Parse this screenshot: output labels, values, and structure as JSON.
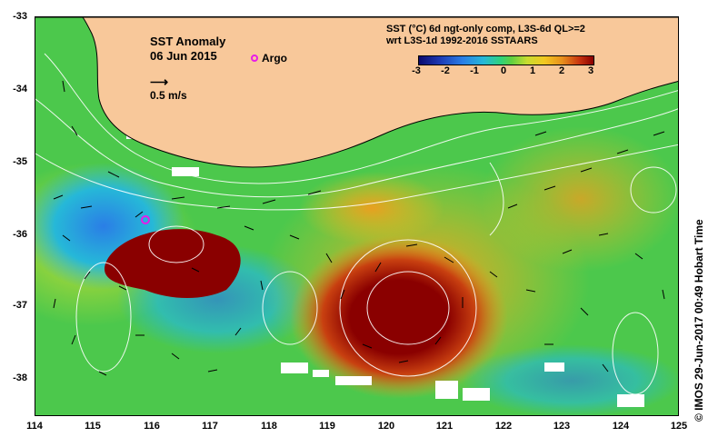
{
  "map": {
    "title_line1": "SST Anomaly",
    "title_line2": "06 Jun 2015",
    "argo_label": "Argo",
    "velocity_scale_label": "0.5 m/s",
    "colorbar_title_line1": "SST (°C) 6d ngt-only comp, L3S-6d QL>=2",
    "colorbar_title_line2": "wrt L3S-1d 1992-2016 SSTAARS",
    "colorbar_ticks": [
      "-3",
      "-2",
      "-1",
      "0",
      "1",
      "2",
      "3"
    ],
    "colorbar_range": [
      -3,
      3
    ],
    "longitude_ticks": [
      "114",
      "115",
      "116",
      "117",
      "118",
      "119",
      "120",
      "121",
      "122",
      "123",
      "124",
      "125"
    ],
    "latitude_ticks": [
      "-33",
      "-34",
      "-35",
      "-36",
      "-37",
      "-38"
    ],
    "lon_range": [
      114,
      125
    ],
    "lat_range": [
      -38.5,
      -33
    ],
    "credit": "© IMOS 29-Jun-2017 00:49 Hobart Time",
    "colors": {
      "land": "#f8c89a",
      "ocean_base": "#4cc84c",
      "warm_anomaly": "#8a0000",
      "argo": "#e81ce8"
    }
  }
}
